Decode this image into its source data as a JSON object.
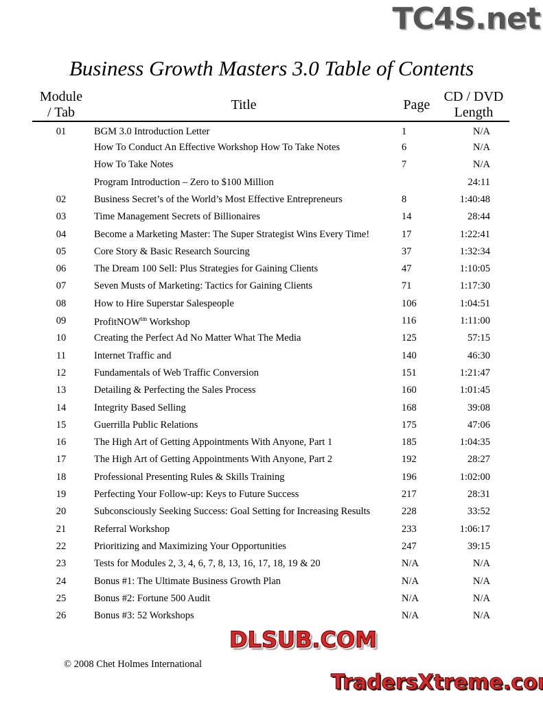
{
  "document": {
    "title": "Business Growth Masters 3.0 Table of Contents",
    "headers": {
      "module": "Module / Tab",
      "module_l1": "Module",
      "module_l2": "/ Tab",
      "title": "Title",
      "page": "Page",
      "length_l1": "CD / DVD",
      "length_l2": "Length"
    },
    "rows": [
      {
        "module": "01",
        "title": "BGM 3.0 Introduction Letter",
        "page": "1",
        "length": "N/A"
      },
      {
        "module": "",
        "title": "How To Conduct An Effective Workshop How To Take Notes",
        "page": "6",
        "length": "N/A"
      },
      {
        "module": "",
        "title": "How To Take Notes",
        "page": "7",
        "length": "N/A"
      },
      {
        "module": "",
        "title": "Program Introduction – Zero to $100 Million",
        "page": "",
        "length": "24:11"
      },
      {
        "module": "02",
        "title": "Business Secret’s of the World’s Most Effective Entrepreneurs",
        "page": "8",
        "length": "1:40:48"
      },
      {
        "module": "03",
        "title": "Time Management Secrets of Billionaires",
        "page": "14",
        "length": "28:44"
      },
      {
        "module": "04",
        "title": "Become a Marketing Master: The Super Strategist Wins Every Time!",
        "page": "17",
        "length": "1:22:41"
      },
      {
        "module": "05",
        "title": "Core Story & Basic Research Sourcing",
        "page": "37",
        "length": "1:32:34"
      },
      {
        "module": "06",
        "title": "The Dream 100 Sell: Plus Strategies for Gaining Clients",
        "page": "47",
        "length": "1:10:05"
      },
      {
        "module": "07",
        "title": "Seven Musts of Marketing: Tactics for Gaining Clients",
        "page": "71",
        "length": "1:17:30"
      },
      {
        "module": "08",
        "title": "How to Hire Superstar Salespeople",
        "page": "106",
        "length": "1:04:51"
      },
      {
        "module": "09",
        "title": "ProfitNOW",
        "title_sup": "tm",
        "title_suffix": " Workshop",
        "page": "116",
        "length": "1:11:00"
      },
      {
        "module": "10",
        "title": "Creating the Perfect Ad No Matter What The Media",
        "page": "125",
        "length": "57:15"
      },
      {
        "module": "11",
        "title": "Internet Traffic and",
        "page": "140",
        "length": "46:30"
      },
      {
        "module": "12",
        "title": "Fundamentals of Web Traffic Conversion",
        "page": "151",
        "length": "1:21:47"
      },
      {
        "module": "13",
        "title": "Detailing & Perfecting the Sales Process",
        "page": "160",
        "length": "1:01:45"
      },
      {
        "module": "14",
        "title": "Integrity Based Selling",
        "page": "168",
        "length": "39:08"
      },
      {
        "module": "15",
        "title": "Guerrilla Public Relations",
        "page": "175",
        "length": "47:06"
      },
      {
        "module": "16",
        "title": "The High Art of Getting Appointments With Anyone, Part 1",
        "page": "185",
        "length": "1:04:35"
      },
      {
        "module": "17",
        "title": "The High Art of Getting Appointments With Anyone, Part 2",
        "page": "192",
        "length": "28:27"
      },
      {
        "module": "18",
        "title": "Professional Presenting Rules & Skills Training",
        "page": "196",
        "length": "1:02:00"
      },
      {
        "module": "19",
        "title": "Perfecting Your Follow-up: Keys to Future Success",
        "page": "217",
        "length": "28:31"
      },
      {
        "module": "20",
        "title": "Subconsciously Seeking Success: Goal Setting for Increasing Results",
        "page": "228",
        "length": "33:52"
      },
      {
        "module": "21",
        "title": "Referral Workshop",
        "page": "233",
        "length": "1:06:17"
      },
      {
        "module": "22",
        "title": "Prioritizing and Maximizing Your Opportunities",
        "page": "247",
        "length": "39:15"
      },
      {
        "module": "23",
        "title": "Tests for Modules 2, 3, 4, 6, 7, 8, 13, 16, 17, 18, 19 & 20",
        "page": "N/A",
        "length": "N/A"
      },
      {
        "module": "24",
        "title": "Bonus #1: The Ultimate Business Growth Plan",
        "page": "N/A",
        "length": "N/A"
      },
      {
        "module": "25",
        "title": "Bonus #2: Fortune 500 Audit",
        "page": "N/A",
        "length": "N/A"
      },
      {
        "module": "26",
        "title": "Bonus #3: 52 Workshops",
        "page": "N/A",
        "length": "N/A"
      }
    ],
    "footer": "© 2008 Chet Holmes International"
  },
  "watermarks": [
    "TC4S.net",
    "DLSUB.COM",
    "TradersXtreme.com"
  ]
}
